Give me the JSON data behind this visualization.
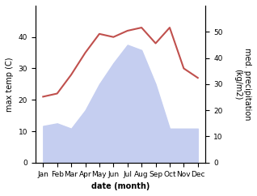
{
  "months": [
    "Jan",
    "Feb",
    "Mar",
    "Apr",
    "May",
    "Jun",
    "Jul",
    "Aug",
    "Sep",
    "Oct",
    "Nov",
    "Dec"
  ],
  "temperature": [
    21,
    22,
    28,
    35,
    41,
    40,
    42,
    43,
    38,
    43,
    30,
    27
  ],
  "precipitation": [
    14,
    15,
    13,
    20,
    30,
    38,
    45,
    43,
    30,
    13,
    13,
    13
  ],
  "temp_color": "#c0504d",
  "precip_fill_color": "#c5cef0",
  "precip_edge_color": "#aab4e8",
  "ylabel_left": "max temp (C)",
  "ylabel_right": "med. precipitation\n(kg/m2)",
  "xlabel": "date (month)",
  "ylim_left": [
    0,
    50
  ],
  "ylim_right": [
    0,
    60
  ],
  "yticks_left": [
    0,
    10,
    20,
    30,
    40
  ],
  "yticks_right": [
    0,
    10,
    20,
    30,
    40,
    50
  ],
  "label_fontsize": 7,
  "tick_fontsize": 6.5
}
